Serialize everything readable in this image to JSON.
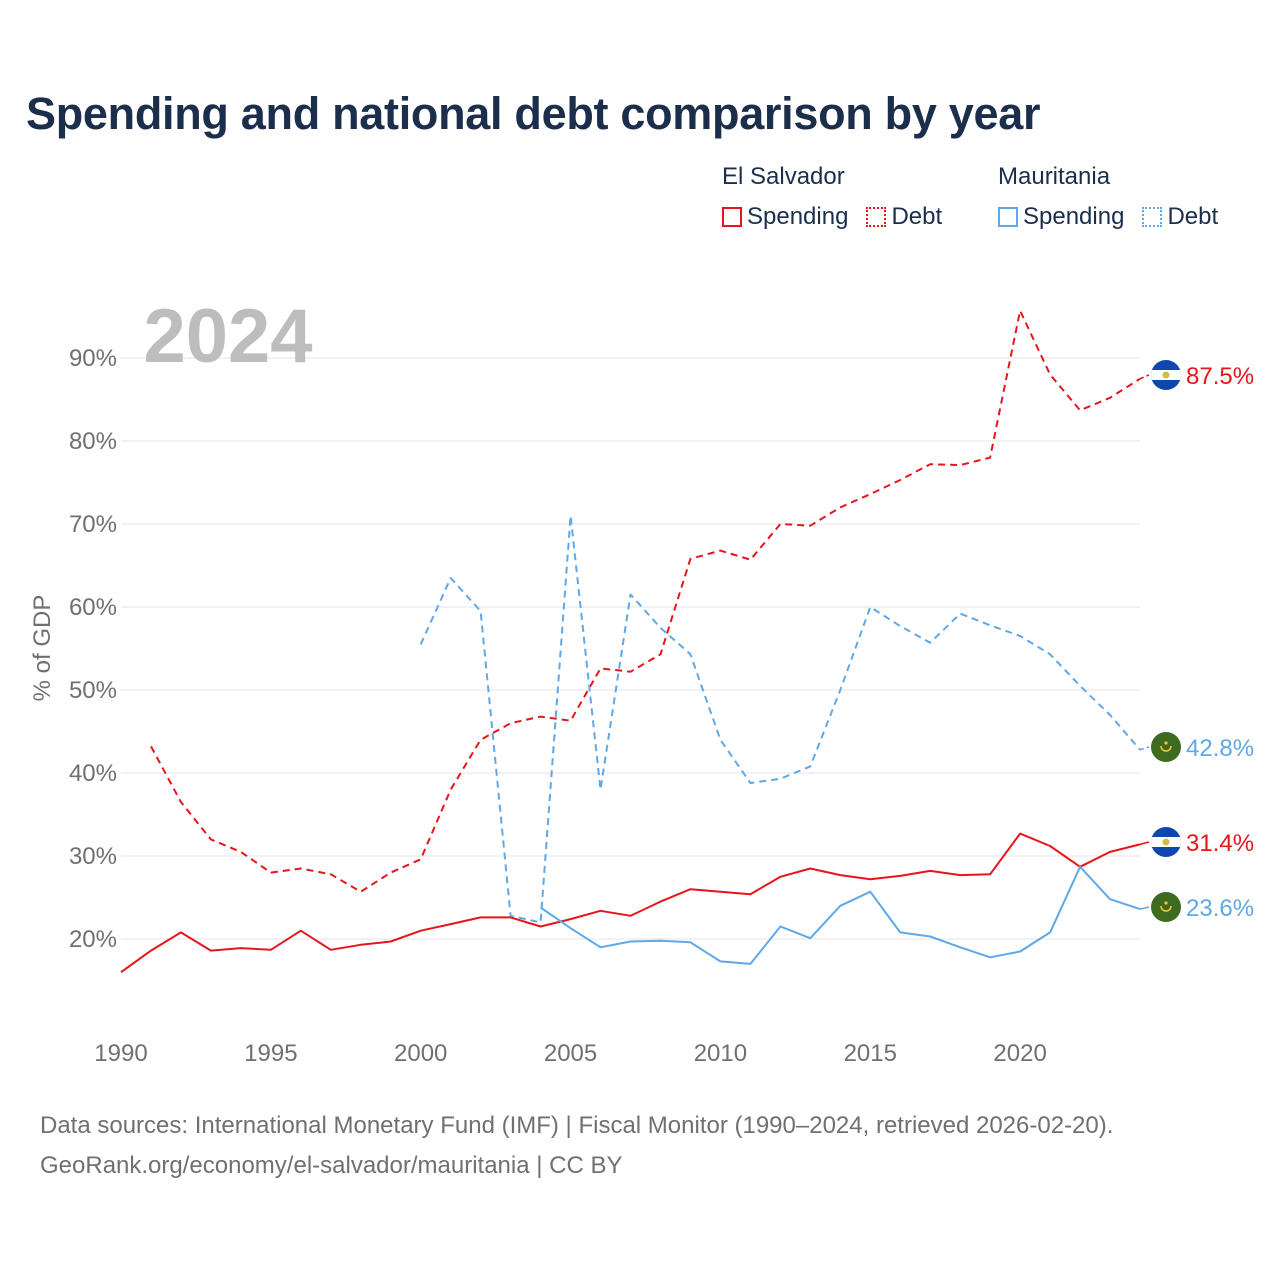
{
  "title": "Spending and national debt comparison by year",
  "legend": {
    "groups": [
      {
        "country": "El Salvador",
        "color": "#e8141b",
        "items": [
          {
            "label": "Spending",
            "style": "solid"
          },
          {
            "label": "Debt",
            "style": "dotted"
          }
        ]
      },
      {
        "country": "Mauritania",
        "color": "#5fa8e8",
        "items": [
          {
            "label": "Spending",
            "style": "solid"
          },
          {
            "label": "Debt",
            "style": "dotted"
          }
        ]
      }
    ]
  },
  "year_label": "2024",
  "footer": {
    "line1": "Data sources: International Monetary Fund (IMF) | Fiscal Monitor (1990–2024, retrieved 2026-02-20).",
    "line2": "GeoRank.org/economy/el-salvador/mauritania | CC BY"
  },
  "chart_data": {
    "type": "line",
    "title": "Spending and national debt comparison by year",
    "xlabel": "",
    "ylabel": "% of GDP",
    "xlim": [
      1990,
      2024
    ],
    "ylim": [
      10,
      100
    ],
    "x_ticks": [
      1990,
      1995,
      2000,
      2005,
      2010,
      2015,
      2020
    ],
    "y_ticks": [
      20,
      30,
      40,
      50,
      60,
      70,
      80,
      90
    ],
    "y_tick_labels": [
      "20%",
      "30%",
      "40%",
      "50%",
      "60%",
      "70%",
      "80%",
      "90%"
    ],
    "grid": true,
    "series": [
      {
        "name": "El Salvador Debt",
        "country": "El Salvador",
        "measure": "Debt",
        "color": "#e8141b",
        "dash": "dashed",
        "flag": "el-salvador",
        "end_label": "87.5%",
        "x": [
          1991,
          1992,
          1993,
          1994,
          1995,
          1996,
          1997,
          1998,
          1999,
          2000,
          2001,
          2002,
          2003,
          2004,
          2005,
          2006,
          2007,
          2008,
          2009,
          2010,
          2011,
          2012,
          2013,
          2014,
          2015,
          2016,
          2017,
          2018,
          2019,
          2020,
          2021,
          2022,
          2023,
          2024
        ],
        "y": [
          43.2,
          36.5,
          32.0,
          30.5,
          28.0,
          28.5,
          27.8,
          25.7,
          28.0,
          29.6,
          38.0,
          44.0,
          46.0,
          46.8,
          46.3,
          52.6,
          52.2,
          54.3,
          65.8,
          66.8,
          65.7,
          70.0,
          69.8,
          72.0,
          73.6,
          75.3,
          77.2,
          77.1,
          78.0,
          95.7,
          88.0,
          83.7,
          85.2,
          87.5
        ]
      },
      {
        "name": "Mauritania Debt",
        "country": "Mauritania",
        "measure": "Debt",
        "color": "#5fa8e8",
        "dash": "dashed",
        "flag": "mauritania",
        "end_label": "42.8%",
        "x": [
          2000,
          2001,
          2002,
          2003,
          2004,
          2005,
          2006,
          2007,
          2008,
          2009,
          2010,
          2011,
          2012,
          2013,
          2014,
          2015,
          2016,
          2017,
          2018,
          2019,
          2020,
          2021,
          2022,
          2023,
          2024
        ],
        "y": [
          55.5,
          63.5,
          59.5,
          22.8,
          22.0,
          71.0,
          38.0,
          61.5,
          57.5,
          54.3,
          44.0,
          38.8,
          39.3,
          40.8,
          50.0,
          60.0,
          57.7,
          55.7,
          59.2,
          57.8,
          56.5,
          54.3,
          50.5,
          47.0,
          42.8
        ]
      },
      {
        "name": "El Salvador Spending",
        "country": "El Salvador",
        "measure": "Spending",
        "color": "#e8141b",
        "dash": "solid",
        "flag": "el-salvador",
        "end_label": "31.4%",
        "x": [
          1990,
          1991,
          1992,
          1993,
          1994,
          1995,
          1996,
          1997,
          1998,
          1999,
          2000,
          2001,
          2002,
          2003,
          2004,
          2005,
          2006,
          2007,
          2008,
          2009,
          2010,
          2011,
          2012,
          2013,
          2014,
          2015,
          2016,
          2017,
          2018,
          2019,
          2020,
          2021,
          2022,
          2023,
          2024
        ],
        "y": [
          16.0,
          18.6,
          20.8,
          18.6,
          18.9,
          18.7,
          21.0,
          18.7,
          19.3,
          19.7,
          21.0,
          21.8,
          22.6,
          22.6,
          21.5,
          22.4,
          23.4,
          22.8,
          24.5,
          26.0,
          25.7,
          25.4,
          27.5,
          28.5,
          27.7,
          27.2,
          27.6,
          28.2,
          27.7,
          27.8,
          32.7,
          31.2,
          28.7,
          30.5,
          31.4
        ]
      },
      {
        "name": "Mauritania Spending",
        "country": "Mauritania",
        "measure": "Spending",
        "color": "#5fa8e8",
        "dash": "solid",
        "flag": "mauritania",
        "end_label": "23.6%",
        "x": [
          2004,
          2005,
          2006,
          2007,
          2008,
          2009,
          2010,
          2011,
          2012,
          2013,
          2014,
          2015,
          2016,
          2017,
          2018,
          2019,
          2020,
          2021,
          2022,
          2023,
          2024
        ],
        "y": [
          23.8,
          21.3,
          19.0,
          19.7,
          19.8,
          19.6,
          17.3,
          17.0,
          21.5,
          20.1,
          24.0,
          25.7,
          20.8,
          20.3,
          19.0,
          17.8,
          18.5,
          20.8,
          28.7,
          24.8,
          23.6
        ]
      }
    ]
  }
}
